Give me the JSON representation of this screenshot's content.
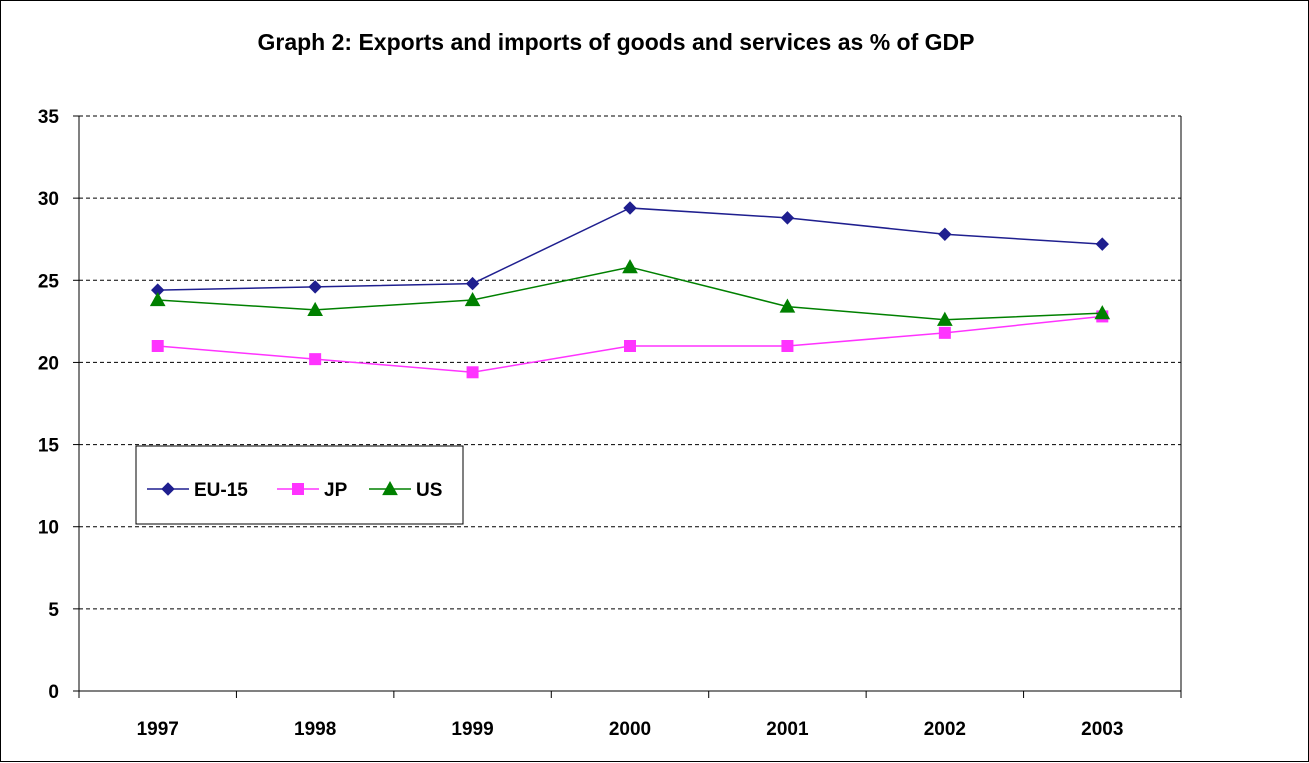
{
  "chart_data": {
    "type": "line",
    "title": "Graph 2: Exports and imports of goods and services as % of GDP",
    "categories": [
      "1997",
      "1998",
      "1999",
      "2000",
      "2001",
      "2002",
      "2003"
    ],
    "ylim": [
      0,
      35
    ],
    "yticks": [
      0,
      5,
      10,
      15,
      20,
      25,
      30,
      35
    ],
    "grid": "horizontal-dashed",
    "legend_position": "inside-left",
    "series": [
      {
        "name": "EU-15",
        "color": "#1F1F8F",
        "marker": "diamond",
        "values": [
          24.4,
          24.6,
          24.8,
          29.4,
          28.8,
          27.8,
          27.2
        ]
      },
      {
        "name": "JP",
        "color": "#FF33FF",
        "marker": "square",
        "values": [
          21.0,
          20.2,
          19.4,
          21.0,
          21.0,
          21.8,
          22.8
        ]
      },
      {
        "name": "US",
        "color": "#008000",
        "marker": "triangle",
        "values": [
          23.8,
          23.2,
          23.8,
          25.8,
          23.4,
          22.6,
          23.0
        ]
      }
    ]
  }
}
